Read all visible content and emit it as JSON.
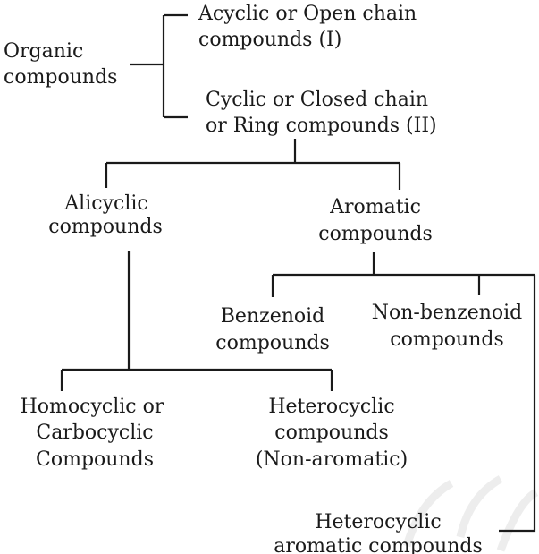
{
  "nodes": {
    "organic": [
      "Organic",
      "compounds"
    ],
    "acyclic": [
      "Acyclic or Open chain",
      "compounds (I)"
    ],
    "cyclic": [
      "Cyclic or Closed chain",
      "or Ring compounds (II)"
    ],
    "alicyclic": [
      "Alicyclic",
      "compounds"
    ],
    "aromatic": [
      "Aromatic",
      "compounds"
    ],
    "benzenoid": [
      "Benzenoid",
      "compounds"
    ],
    "non_benzenoid": [
      "Non-benzenoid",
      "compounds"
    ],
    "homocyclic": [
      "Homocyclic or",
      "Carbocyclic",
      "Compounds"
    ],
    "heterocyclic": [
      "Heterocyclic",
      "compounds",
      "(Non-aromatic)"
    ],
    "heterocyclic_aromatic": [
      "Heterocyclic",
      "aromatic compounds"
    ]
  }
}
